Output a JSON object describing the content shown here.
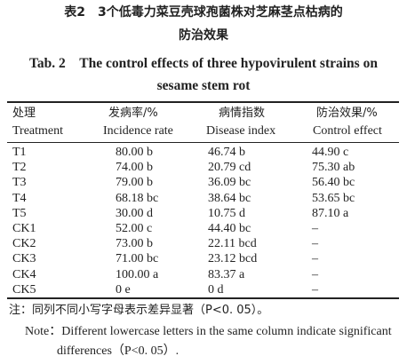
{
  "caption": {
    "cn_line1": "表2　3个低毒力菜豆壳球孢菌株对芝麻茎点枯病的",
    "cn_line2": "防治效果",
    "en_line1": "Tab. 2　The control effects of three hypovirulent strains on",
    "en_line2": "sesame stem rot"
  },
  "headers_cn": [
    "处理",
    "发病率/%",
    "病情指数",
    "防治效果/%"
  ],
  "headers_en": [
    "Treatment",
    "Incidence rate",
    "Disease index",
    "Control effect"
  ],
  "rows": [
    [
      "T1",
      "80.00 b",
      "46.74 b",
      "44.90 c"
    ],
    [
      "T2",
      "74.00 b",
      "20.79 cd",
      "75.30 ab"
    ],
    [
      "T3",
      "79.00 b",
      "36.09 bc",
      "56.40 bc"
    ],
    [
      "T4",
      "68.18 bc",
      "38.64 bc",
      "53.65 bc"
    ],
    [
      "T5",
      "30.00 d",
      "10.75 d",
      "87.10 a"
    ],
    [
      "CK1",
      "52.00 c",
      "44.40 bc",
      "–"
    ],
    [
      "CK2",
      "73.00 b",
      "22.11 bcd",
      "–"
    ],
    [
      "CK3",
      "71.00 bc",
      "23.12 bcd",
      "–"
    ],
    [
      "CK4",
      "100.00 a",
      "83.37 a",
      "–"
    ],
    [
      "CK5",
      "0 e",
      "0 d",
      "–"
    ]
  ],
  "notes": {
    "cn": "注：同列不同小写字母表示差异显著（P<0. 05）。",
    "en_line1": "Note：Different lowercase letters in the same column indicate significant",
    "en_line2": "differences（P<0. 05）."
  }
}
